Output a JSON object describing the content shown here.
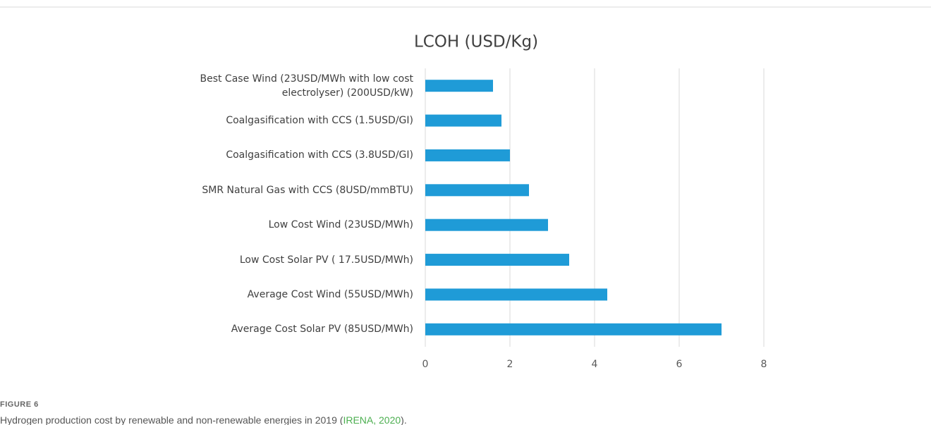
{
  "chart_data": {
    "type": "barh",
    "title": "LCOH (USD/Kg)",
    "categories": [
      "Best Case Wind (23USD/MWh with low cost\nelectrolyser) (200USD/kW)",
      "Coalgasification with CCS (1.5USD/GI)",
      "Coalgasification with CCS (3.8USD/GI)",
      "SMR Natural Gas with CCS (8USD/mmBTU)",
      "Low Cost Wind (23USD/MWh)",
      "Low Cost Solar PV ( 17.5USD/MWh)",
      "Average Cost Wind (55USD/MWh)",
      "Average Cost Solar PV (85USD/MWh)"
    ],
    "values": [
      1.6,
      1.8,
      2.0,
      2.45,
      2.9,
      3.4,
      4.3,
      7.0
    ],
    "color": "#1f9bd7",
    "xlim": [
      0,
      8
    ],
    "xticks": [
      0,
      2,
      4,
      6,
      8
    ],
    "grid": true
  },
  "caption": {
    "label": "FIGURE 6",
    "text": "Hydrogen production cost by renewable and non-renewable energies in 2019 (",
    "citation": "IRENA, 2020",
    "end": ")."
  }
}
